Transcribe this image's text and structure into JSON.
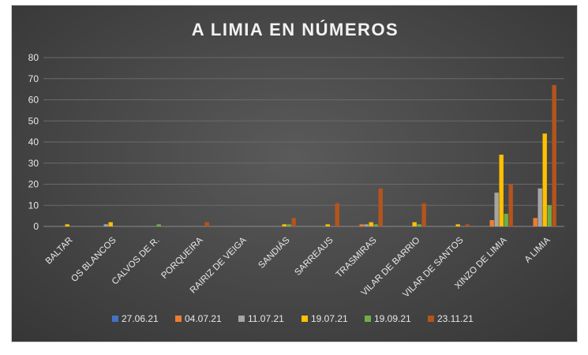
{
  "chart_data": {
    "type": "bar",
    "title": "A LIMIA EN NÚMEROS",
    "xlabel": "",
    "ylabel": "",
    "ylim": [
      0,
      80
    ],
    "yticks": [
      0,
      10,
      20,
      30,
      40,
      50,
      60,
      70,
      80
    ],
    "grid": true,
    "legend_position": "bottom",
    "categories": [
      "BALTAR",
      "OS BLANCOS",
      "CALVOS DE R.",
      "PORQUEIRA",
      "RAIRIZ DE VEIGA",
      "SANDIÁS",
      "SARREAUS",
      "TRASMIRAS",
      "VILAR DE BARRIO",
      "VILAR DE SANTOS",
      "XINZO DE LIMIA",
      "A LIMIA"
    ],
    "series": [
      {
        "name": "27.06.21",
        "color": "#4472c4",
        "values": [
          0,
          0,
          0,
          0,
          0,
          0,
          0,
          0,
          0,
          0,
          0,
          0
        ]
      },
      {
        "name": "04.07.21",
        "color": "#ed7d31",
        "values": [
          0,
          0,
          0,
          0,
          0,
          0,
          0,
          1,
          0,
          0,
          3,
          4
        ]
      },
      {
        "name": "11.07.21",
        "color": "#a5a5a5",
        "values": [
          0,
          1,
          0,
          0,
          0,
          0,
          0,
          1,
          0,
          0,
          16,
          18
        ]
      },
      {
        "name": "19.07.21",
        "color": "#ffc000",
        "values": [
          1,
          2,
          0,
          0,
          0,
          1,
          1,
          2,
          2,
          1,
          34,
          44
        ]
      },
      {
        "name": "19.09.21",
        "color": "#70ad47",
        "values": [
          0,
          0,
          1,
          0,
          0,
          1,
          0,
          1,
          1,
          0,
          6,
          10
        ]
      },
      {
        "name": "23.11.21",
        "color": "#b4541c",
        "values": [
          0,
          0,
          0,
          2,
          0,
          4,
          11,
          18,
          11,
          1,
          20,
          67
        ]
      }
    ]
  }
}
